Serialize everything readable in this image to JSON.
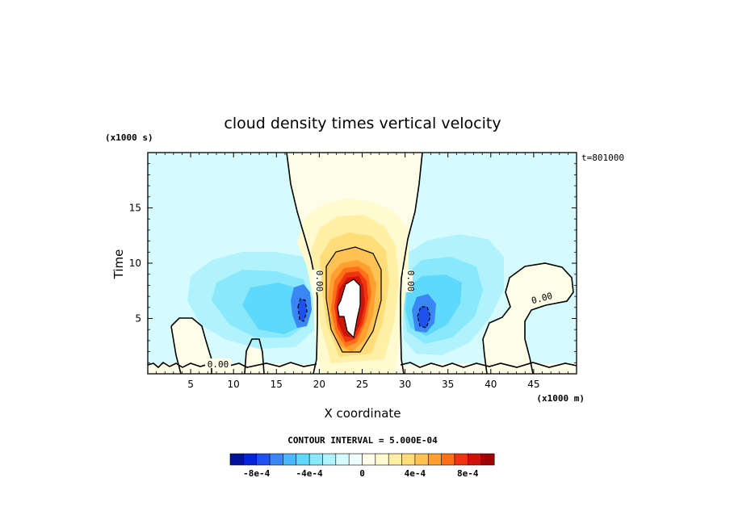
{
  "chart_data": {
    "type": "heatmap",
    "title": "cloud density times vertical velocity",
    "xlabel": "X coordinate",
    "ylabel": "Time",
    "x_units": "(x1000 m)",
    "y_units": "(x1000 s)",
    "time_stamp": "t=801000",
    "xlim": [
      0,
      50
    ],
    "ylim": [
      0,
      20
    ],
    "x_ticks": [
      5,
      10,
      15,
      20,
      25,
      30,
      35,
      40,
      45
    ],
    "y_ticks": [
      5,
      10,
      15
    ],
    "contour_interval_label": "CONTOUR INTERVAL = 5.000E-04",
    "contour_interval": 0.0005,
    "zero_contour_label": "0.00",
    "colorbar": {
      "min": -0.001,
      "max": 0.001,
      "tick_labels": [
        "-8e-4",
        "-4e-4",
        "0",
        "4e-4",
        "8e-4"
      ],
      "tick_values": [
        -0.0008,
        -0.0004,
        0,
        0.0004,
        0.0008
      ],
      "colors": [
        "#00129c",
        "#0026d6",
        "#1d52ee",
        "#3a86f5",
        "#4ab6fc",
        "#5ed8fb",
        "#8ae8fd",
        "#b0f3fd",
        "#d6fbfe",
        "#f0fefe",
        "#fdfde8",
        "#fffad0",
        "#fff0a6",
        "#ffde7a",
        "#ffc253",
        "#ffa030",
        "#ff7018",
        "#ee3410",
        "#cc1408",
        "#9c0404"
      ]
    },
    "features": [
      {
        "name": "central updraft core",
        "x": 24,
        "y": 7,
        "value": 0.001,
        "sign": "positive"
      },
      {
        "name": "left downdraft",
        "x": 18,
        "y": 6,
        "value": -0.0005,
        "sign": "negative"
      },
      {
        "name": "right downdraft",
        "x": 32,
        "y": 5.5,
        "value": -0.0006,
        "sign": "negative"
      }
    ]
  }
}
